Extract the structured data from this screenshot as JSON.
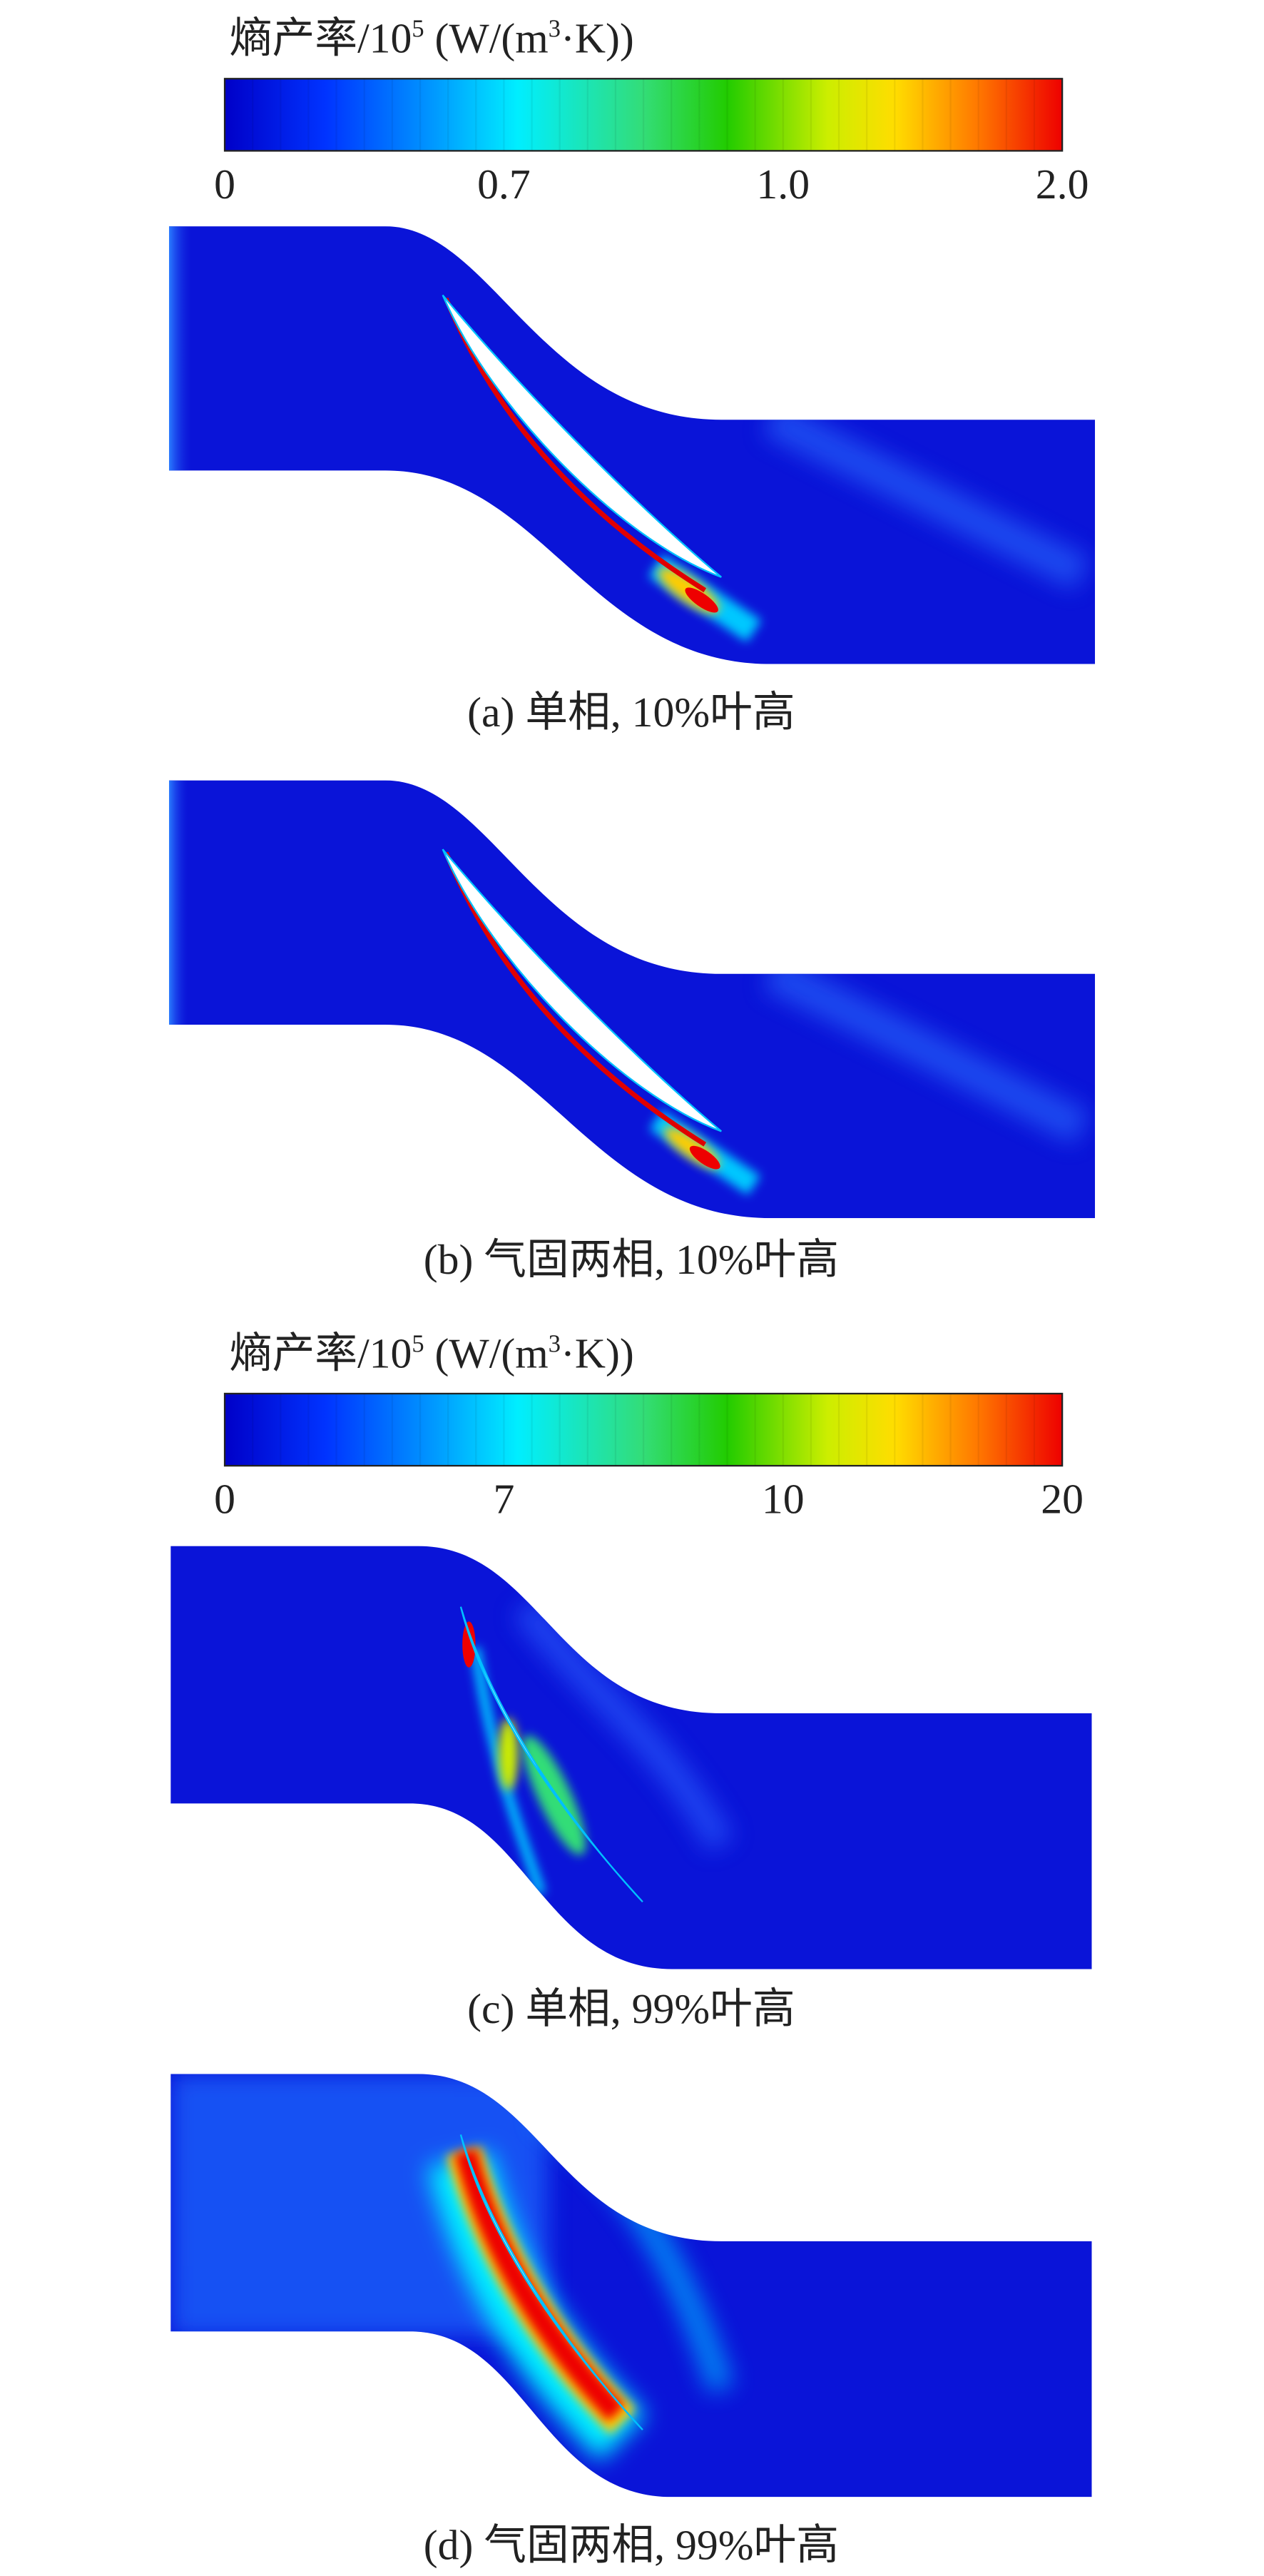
{
  "colorbars": [
    {
      "title": {
        "main": "熵产率/10",
        "exp": "5",
        "unit": " (W/(m",
        "unit_exp": "3",
        "tail": "·K))"
      },
      "ticks": [
        "0",
        "0.7",
        "1.0",
        "2.0"
      ]
    },
    {
      "title": {
        "main": "熵产率/10",
        "exp": "5",
        "unit": " (W/(m",
        "unit_exp": "3",
        "tail": "·K))"
      },
      "ticks": [
        "0",
        "7",
        "10",
        "20"
      ]
    }
  ],
  "panels": [
    {
      "caption": "(a) 单相, 10%叶高"
    },
    {
      "caption": "(b) 气固两相, 10%叶高"
    },
    {
      "caption": "(c) 单相, 99%叶高"
    },
    {
      "caption": "(d) 气固两相, 99%叶高"
    }
  ]
}
